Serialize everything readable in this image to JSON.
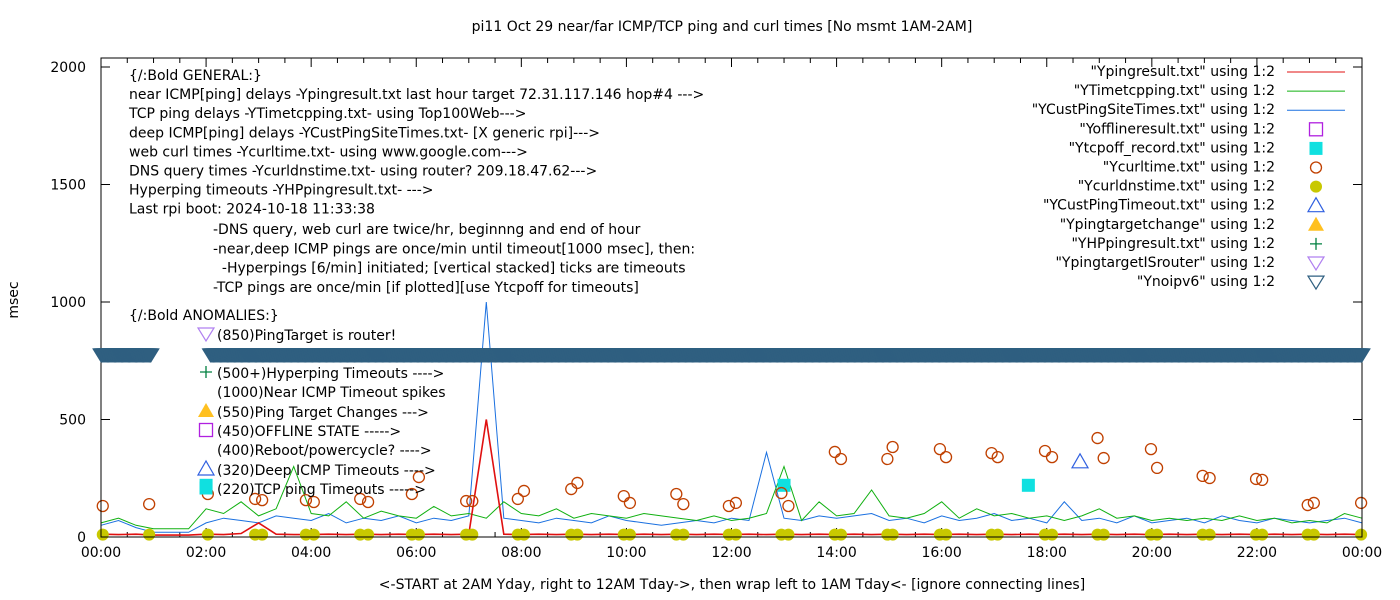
{
  "chart_data": {
    "type": "line",
    "title": "pi11 Oct 29  near/far ICMP/TCP ping and curl times [No msmt 1AM-2AM]",
    "xlabel": "<-START at 2AM Yday, right to 12AM Tday->, then wrap left to 1AM Tday<- [ignore connecting lines]",
    "ylabel": "msec",
    "xlim": [
      "00:00",
      "24:00"
    ],
    "ylim": [
      0,
      2050
    ],
    "x_tick_labels": [
      "00:00",
      "02:00",
      "04:00",
      "06:00",
      "08:00",
      "10:00",
      "12:00",
      "14:00",
      "16:00",
      "18:00",
      "20:00",
      "22:00",
      "00:00"
    ],
    "y_tick_labels": [
      "0",
      "500",
      "1000",
      "1500",
      "2000"
    ],
    "grid": false,
    "legend_placement": "top-right",
    "x": [
      "00:00",
      "00:20",
      "00:40",
      "01:00",
      "01:20",
      "01:40",
      "02:00",
      "02:20",
      "02:40",
      "03:00",
      "03:20",
      "03:40",
      "04:00",
      "04:20",
      "04:40",
      "05:00",
      "05:20",
      "05:40",
      "06:00",
      "06:20",
      "06:40",
      "07:00",
      "07:20",
      "07:40",
      "08:00",
      "08:20",
      "08:40",
      "09:00",
      "09:20",
      "09:40",
      "10:00",
      "10:20",
      "10:40",
      "11:00",
      "11:20",
      "11:40",
      "12:00",
      "12:20",
      "12:40",
      "13:00",
      "13:20",
      "13:40",
      "14:00",
      "14:20",
      "14:40",
      "15:00",
      "15:20",
      "15:40",
      "16:00",
      "16:20",
      "16:40",
      "17:00",
      "17:20",
      "17:40",
      "18:00",
      "18:20",
      "18:40",
      "19:00",
      "19:20",
      "19:40",
      "20:00",
      "20:20",
      "20:40",
      "21:00",
      "21:20",
      "21:40",
      "22:00",
      "22:20",
      "22:40",
      "23:00",
      "23:20",
      "23:40",
      "24:00"
    ],
    "series": [
      {
        "name": "\"Ypingresult.txt\" using 1:2",
        "style": "line",
        "color": "#e01010",
        "values": [
          12,
          10,
          12,
          8,
          8,
          8,
          12,
          10,
          15,
          60,
          12,
          10,
          10,
          12,
          10,
          12,
          10,
          12,
          10,
          12,
          10,
          12,
          500,
          12,
          10,
          12,
          10,
          12,
          10,
          12,
          10,
          12,
          10,
          12,
          10,
          12,
          10,
          12,
          10,
          12,
          10,
          12,
          10,
          12,
          10,
          12,
          10,
          12,
          10,
          12,
          10,
          12,
          10,
          12,
          10,
          12,
          10,
          12,
          10,
          12,
          10,
          12,
          10,
          12,
          10,
          12,
          10,
          12,
          10,
          12,
          10,
          12,
          10
        ]
      },
      {
        "name": "\"YTimetcpping.txt\" using 1:2",
        "style": "line",
        "color": "#10b010",
        "values": [
          60,
          80,
          50,
          35,
          35,
          35,
          120,
          100,
          150,
          90,
          120,
          300,
          100,
          90,
          150,
          80,
          110,
          90,
          80,
          130,
          90,
          100,
          80,
          150,
          100,
          90,
          120,
          80,
          100,
          90,
          80,
          100,
          90,
          80,
          70,
          90,
          70,
          80,
          100,
          300,
          70,
          150,
          90,
          100,
          200,
          90,
          80,
          100,
          150,
          80,
          120,
          90,
          100,
          80,
          90,
          70,
          90,
          120,
          80,
          90,
          70,
          80,
          70,
          80,
          70,
          90,
          70,
          80,
          60,
          70,
          60,
          100,
          80
        ]
      },
      {
        "name": "\"YCustPingSiteTimes.txt\" using 1:2",
        "style": "line",
        "color": "#1a70e0",
        "values": [
          50,
          70,
          40,
          20,
          20,
          20,
          60,
          80,
          70,
          60,
          90,
          80,
          70,
          100,
          60,
          80,
          70,
          90,
          60,
          80,
          70,
          90,
          1000,
          80,
          70,
          60,
          80,
          70,
          60,
          90,
          70,
          60,
          50,
          60,
          70,
          60,
          80,
          70,
          360,
          80,
          70,
          90,
          80,
          90,
          100,
          70,
          80,
          60,
          90,
          70,
          80,
          100,
          70,
          80,
          60,
          150,
          70,
          80,
          60,
          90,
          60,
          70,
          80,
          60,
          90,
          70,
          60,
          80,
          70,
          60,
          70,
          80,
          60
        ]
      }
    ],
    "point_series": [
      {
        "name": "\"Yofflineresult.txt\" using 1:2",
        "marker": "open-square",
        "color": "#b020e0",
        "points": []
      },
      {
        "name": "\"Ytcpoff_record.txt\" using 1:2",
        "marker": "filled-square",
        "color": "#10e0e0",
        "points": [
          [
            "02:00",
            220
          ],
          [
            "13:00",
            220
          ],
          [
            "17:39",
            220
          ]
        ]
      },
      {
        "name": "\"Ycurltime.txt\" using 1:2",
        "marker": "open-circle",
        "color": "#c04000",
        "points": [
          [
            "00:02",
            132
          ],
          [
            "00:55",
            140
          ],
          [
            "02:02",
            183
          ],
          [
            "02:56",
            162
          ],
          [
            "03:04",
            157
          ],
          [
            "03:54",
            157
          ],
          [
            "04:03",
            149
          ],
          [
            "04:56",
            162
          ],
          [
            "05:05",
            149
          ],
          [
            "05:55",
            183
          ],
          [
            "06:03",
            255
          ],
          [
            "06:57",
            153
          ],
          [
            "07:04",
            153
          ],
          [
            "07:56",
            162
          ],
          [
            "08:03",
            196
          ],
          [
            "08:57",
            204
          ],
          [
            "09:04",
            230
          ],
          [
            "09:57",
            174
          ],
          [
            "10:04",
            145
          ],
          [
            "10:57",
            183
          ],
          [
            "11:05",
            140
          ],
          [
            "11:57",
            132
          ],
          [
            "12:05",
            145
          ],
          [
            "12:57",
            187
          ],
          [
            "13:05",
            132
          ],
          [
            "13:58",
            362
          ],
          [
            "14:05",
            332
          ],
          [
            "14:58",
            332
          ],
          [
            "15:04",
            383
          ],
          [
            "15:58",
            374
          ],
          [
            "16:05",
            340
          ],
          [
            "16:57",
            357
          ],
          [
            "17:04",
            340
          ],
          [
            "17:58",
            366
          ],
          [
            "18:06",
            340
          ],
          [
            "18:58",
            421
          ],
          [
            "19:05",
            336
          ],
          [
            "19:59",
            374
          ],
          [
            "20:06",
            294
          ],
          [
            "20:58",
            260
          ],
          [
            "21:06",
            251
          ],
          [
            "21:59",
            247
          ],
          [
            "22:06",
            243
          ],
          [
            "22:58",
            136
          ],
          [
            "23:05",
            145
          ],
          [
            "23:59",
            145
          ]
        ]
      },
      {
        "name": "\"Ycurldnstime.txt\" using 1:2",
        "marker": "filled-circle",
        "color": "#c8c800",
        "points": [
          [
            "00:02",
            10
          ],
          [
            "00:55",
            10
          ],
          [
            "02:02",
            10
          ],
          [
            "02:56",
            10
          ],
          [
            "03:04",
            10
          ],
          [
            "03:54",
            10
          ],
          [
            "04:03",
            10
          ],
          [
            "04:56",
            10
          ],
          [
            "05:05",
            10
          ],
          [
            "05:55",
            10
          ],
          [
            "06:03",
            10
          ],
          [
            "06:57",
            10
          ],
          [
            "07:04",
            10
          ],
          [
            "07:56",
            10
          ],
          [
            "08:03",
            10
          ],
          [
            "08:57",
            10
          ],
          [
            "09:04",
            10
          ],
          [
            "09:57",
            10
          ],
          [
            "10:04",
            10
          ],
          [
            "10:57",
            10
          ],
          [
            "11:05",
            10
          ],
          [
            "11:57",
            10
          ],
          [
            "12:05",
            10
          ],
          [
            "12:57",
            10
          ],
          [
            "13:05",
            10
          ],
          [
            "13:58",
            10
          ],
          [
            "14:05",
            10
          ],
          [
            "14:58",
            10
          ],
          [
            "15:04",
            10
          ],
          [
            "15:58",
            10
          ],
          [
            "16:05",
            10
          ],
          [
            "16:57",
            10
          ],
          [
            "17:04",
            10
          ],
          [
            "17:58",
            10
          ],
          [
            "18:06",
            10
          ],
          [
            "18:58",
            10
          ],
          [
            "19:05",
            10
          ],
          [
            "19:59",
            10
          ],
          [
            "20:06",
            10
          ],
          [
            "20:58",
            10
          ],
          [
            "21:06",
            10
          ],
          [
            "21:59",
            10
          ],
          [
            "22:06",
            10
          ],
          [
            "22:58",
            10
          ],
          [
            "23:05",
            10
          ],
          [
            "23:59",
            10
          ]
        ]
      },
      {
        "name": "\"YCustPingTimeout.txt\" using 1:2",
        "marker": "open-triangle-up",
        "color": "#3060e0",
        "points": [
          [
            "18:38",
            320
          ]
        ]
      },
      {
        "name": "\"Ypingtargetchange\" using 1:2",
        "marker": "filled-triangle-up",
        "color": "#ffc020",
        "points": []
      },
      {
        "name": "\"YHPpingresult.txt\" using 1:2",
        "marker": "plus",
        "color": "#008040",
        "points": []
      },
      {
        "name": "\"YpingtargetISrouter\" using 1:2",
        "marker": "open-triangle-down",
        "color": "#b080f0",
        "points": []
      },
      {
        "name": "\"Ynoipv6\" using 1:2",
        "marker": "open-triangle-down",
        "color": "#2f5f80",
        "value": 775,
        "ranges": [
          [
            "00:00",
            "00:57"
          ],
          [
            "02:05",
            "24:00"
          ]
        ]
      }
    ],
    "annotations": {
      "general": [
        "{/:Bold GENERAL:}",
        "near ICMP[ping] delays -Ypingresult.txt last hour target 72.31.117.146 hop#4 --->",
        "TCP ping delays -YTimetcpping.txt- using Top100Web--->",
        "deep ICMP[ping] delays -YCustPingSiteTimes.txt- [X generic rpi]--->",
        "web curl times -Ycurltime.txt- using www.google.com--->",
        "DNS query times -Ycurldnstime.txt- using router? 209.18.47.62--->",
        "Hyperping timeouts -YHPpingresult.txt- --->",
        "Last rpi boot: 2024-10-18 11:33:38"
      ],
      "notes": [
        "-DNS query, web curl are twice/hr, beginnng and end of hour",
        "-near,deep ICMP pings are once/min until timeout[1000 msec], then:",
        "  -Hyperpings [6/min] initiated; [vertical stacked] ticks are timeouts",
        "-TCP pings are once/min [if plotted][use Ytcpoff for timeouts]"
      ],
      "anomalies_title": "{/:Bold ANOMALIES:}",
      "anomalies": [
        {
          "marker": "open-triangle-down",
          "color": "#b080f0",
          "text": "(850)PingTarget is router!"
        },
        {
          "marker": "plus",
          "color": "#008040",
          "text": "(500+)Hyperping Timeouts ---->"
        },
        {
          "marker": "none",
          "color": "",
          "text": "(1000)Near ICMP Timeout spikes"
        },
        {
          "marker": "filled-triangle-up",
          "color": "#ffc020",
          "text": "(550)Ping Target Changes --->"
        },
        {
          "marker": "open-square",
          "color": "#b020e0",
          "text": "(450)OFFLINE STATE ----->"
        },
        {
          "marker": "none",
          "color": "",
          "text": "(400)Reboot/powercycle? ---->"
        },
        {
          "marker": "open-triangle-up",
          "color": "#3060e0",
          "text": "(320)Deep ICMP Timeouts ---->"
        },
        {
          "marker": "filled-square",
          "color": "#10e0e0",
          "text": "(220)TCP ping Timeouts ----->"
        }
      ]
    }
  }
}
